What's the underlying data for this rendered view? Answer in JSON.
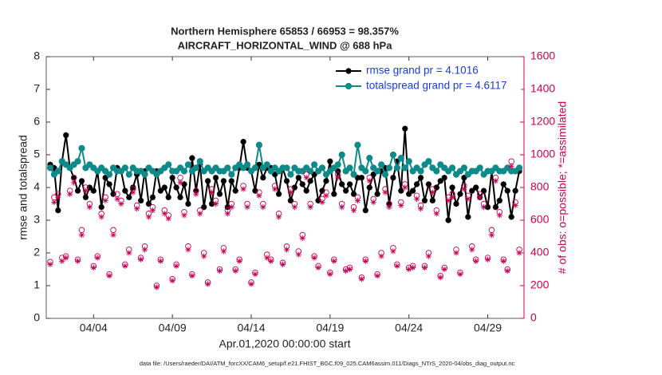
{
  "chart_data": {
    "type": "line",
    "title": "Northern Hemisphere 65853 / 66953 = 98.357%",
    "subtitle": "AIRCRAFT_HORIZONTAL_WIND @ 688 hPa",
    "x_label": "Apr.01,2020 00:00:00 start",
    "y_label": "rmse and totalspread",
    "y2_label": "# of obs: o=possible; *=assimilated",
    "footnote": "data file: /Users/raeder/DAI/ATM_forcXX/CAM6_setup/f.e21.FHIST_BGC.f09_025.CAM6assim.011/Diags_NTrS_2020-04/obs_diag_output.nc",
    "xlim": [
      0,
      30.3
    ],
    "xticks": [
      {
        "value": 3,
        "label": "04/04"
      },
      {
        "value": 8,
        "label": "04/09"
      },
      {
        "value": 13,
        "label": "04/14"
      },
      {
        "value": 18,
        "label": "04/19"
      },
      {
        "value": 23,
        "label": "04/24"
      },
      {
        "value": 28,
        "label": "04/29"
      }
    ],
    "ylim": [
      0,
      8
    ],
    "yticks": [
      0,
      1,
      2,
      3,
      4,
      5,
      6,
      7,
      8
    ],
    "y2lim": [
      0,
      1600
    ],
    "y2ticks": [
      0,
      200,
      400,
      600,
      800,
      1000,
      1200,
      1400,
      1600
    ],
    "y2_color": "#cc0055",
    "legend": "upper right",
    "x": [
      0.25,
      0.5,
      0.75,
      1,
      1.25,
      1.5,
      1.75,
      2,
      2.25,
      2.5,
      2.75,
      3,
      3.25,
      3.5,
      3.75,
      4,
      4.25,
      4.5,
      4.75,
      5,
      5.25,
      5.5,
      5.75,
      6,
      6.25,
      6.5,
      6.75,
      7,
      7.25,
      7.5,
      7.75,
      8,
      8.25,
      8.5,
      8.75,
      9,
      9.25,
      9.5,
      9.75,
      10,
      10.25,
      10.5,
      10.75,
      11,
      11.25,
      11.5,
      11.75,
      12,
      12.25,
      12.5,
      12.75,
      13,
      13.25,
      13.5,
      13.75,
      14,
      14.25,
      14.5,
      14.75,
      15,
      15.25,
      15.5,
      15.75,
      16,
      16.25,
      16.5,
      16.75,
      17,
      17.25,
      17.5,
      17.75,
      18,
      18.25,
      18.5,
      18.75,
      19,
      19.25,
      19.5,
      19.75,
      20,
      20.25,
      20.5,
      20.75,
      21,
      21.25,
      21.5,
      21.75,
      22,
      22.25,
      22.5,
      22.75,
      23,
      23.25,
      23.5,
      23.75,
      24,
      24.25,
      24.5,
      24.75,
      25,
      25.25,
      25.5,
      25.75,
      26,
      26.25,
      26.5,
      26.75,
      27,
      27.25,
      27.5,
      27.75,
      28,
      28.25,
      28.5,
      28.75,
      29,
      29.25,
      29.5,
      29.75,
      30
    ],
    "series": [
      {
        "name": "rmse grand pr = 4.1016",
        "color": "#000000",
        "marker": "*",
        "line": true,
        "values": [
          4.7,
          4.6,
          3.3,
          4.8,
          5.6,
          4.6,
          4.3,
          3.9,
          4.2,
          3.7,
          4.0,
          3.9,
          4.5,
          3.4,
          4.3,
          4.1,
          3.8,
          4.6,
          4.5,
          3.9,
          3.7,
          4.0,
          4.4,
          3.6,
          4.5,
          3.5,
          3.7,
          4.5,
          3.9,
          4.0,
          3.7,
          4.3,
          4.0,
          3.7,
          4.1,
          3.5,
          4.9,
          3.9,
          4.7,
          3.4,
          4.2,
          3.5,
          4.3,
          3.8,
          4.2,
          3.4,
          4.2,
          3.9,
          4.6,
          5.4,
          4.6,
          4.5,
          3.9,
          4.7,
          4.3,
          4.6,
          4.6,
          4.4,
          3.8,
          4.6,
          4.2,
          3.6,
          4.0,
          4.3,
          4.1,
          3.9,
          4.2,
          4.4,
          3.6,
          3.9,
          4.2,
          4.8,
          3.8,
          4.5,
          4.1,
          3.9,
          4.1,
          3.8,
          4.3,
          4.3,
          3.3,
          4.0,
          4.4,
          3.8,
          4.5,
          4.6,
          3.5,
          4.3,
          4.8,
          3.9,
          5.8,
          3.8,
          3.9,
          4.1,
          4.3,
          3.6,
          4.1,
          3.6,
          4.0,
          4.2,
          4.3,
          3.0,
          4.0,
          3.5,
          3.8,
          4.3,
          3.1,
          3.9,
          4.0,
          3.7,
          3.9,
          3.4,
          4.5,
          3.4,
          3.6,
          4.1,
          3.9,
          3.1,
          3.9,
          4.5
        ]
      },
      {
        "name": "totalspread grand pr = 4.6117",
        "color": "#0e8a8a",
        "marker": "o",
        "line": true,
        "values": [
          4.6,
          4.4,
          4.5,
          4.8,
          4.7,
          4.6,
          4.7,
          4.8,
          5.2,
          4.6,
          4.7,
          4.6,
          4.5,
          4.6,
          4.5,
          4.4,
          4.6,
          4.5,
          4.5,
          4.6,
          4.4,
          4.6,
          4.5,
          4.5,
          4.4,
          4.6,
          4.5,
          4.4,
          4.5,
          4.6,
          4.7,
          4.5,
          4.5,
          4.6,
          4.5,
          4.7,
          4.5,
          4.6,
          4.8,
          4.5,
          4.6,
          4.5,
          4.6,
          4.5,
          4.5,
          4.6,
          4.4,
          4.6,
          4.7,
          4.6,
          4.7,
          4.5,
          4.6,
          5.3,
          4.6,
          4.7,
          4.5,
          4.6,
          4.5,
          4.6,
          4.6,
          4.4,
          4.6,
          4.5,
          4.5,
          4.6,
          4.5,
          4.7,
          4.5,
          4.6,
          4.4,
          4.5,
          4.6,
          4.7,
          5.0,
          4.5,
          4.6,
          4.4,
          5.3,
          4.6,
          4.5,
          4.9,
          4.6,
          4.5,
          4.7,
          4.4,
          4.6,
          5.0,
          4.6,
          4.9,
          4.6,
          4.8,
          4.5,
          4.6,
          4.5,
          4.7,
          4.8,
          4.6,
          4.5,
          4.7,
          4.6,
          4.5,
          4.6,
          4.4,
          4.5,
          4.6,
          4.4,
          4.5,
          4.5,
          4.6,
          4.4,
          4.5,
          4.5,
          4.6,
          4.5,
          4.5,
          4.6,
          4.5,
          4.5,
          4.6
        ]
      },
      {
        "color": "#cc0055",
        "marker": "circle-open",
        "line": false,
        "axis": "y2",
        "values": [
          345,
          740,
          760,
          370,
          380,
          780,
          860,
          360,
          540,
          800,
          700,
          320,
          380,
          640,
          740,
          270,
          540,
          760,
          720,
          330,
          420,
          790,
          690,
          370,
          440,
          640,
          680,
          200,
          360,
          660,
          630,
          240,
          330,
          860,
          650,
          440,
          270,
          780,
          660,
          400,
          220,
          790,
          720,
          300,
          430,
          660,
          700,
          300,
          360,
          810,
          700,
          220,
          280,
          770,
          700,
          390,
          360,
          810,
          640,
          340,
          440,
          790,
          700,
          410,
          510,
          880,
          700,
          380,
          320,
          730,
          770,
          280,
          360,
          880,
          700,
          300,
          310,
          680,
          740,
          250,
          360,
          860,
          730,
          270,
          400,
          790,
          700,
          430,
          330,
          710,
          820,
          310,
          320,
          750,
          690,
          320,
          400,
          790,
          660,
          260,
          310,
          740,
          760,
          420,
          280,
          810,
          750,
          440,
          360,
          760,
          700,
          370,
          540,
          860,
          650,
          360,
          300,
          960,
          710,
          420
        ]
      },
      {
        "color": "#cc0055",
        "marker": "asterisk",
        "line": false,
        "axis": "y2",
        "values": [
          330,
          710,
          740,
          350,
          370,
          760,
          830,
          350,
          510,
          780,
          680,
          310,
          370,
          620,
          720,
          260,
          510,
          730,
          700,
          320,
          400,
          770,
          670,
          360,
          420,
          620,
          660,
          190,
          350,
          640,
          610,
          230,
          320,
          830,
          630,
          420,
          260,
          760,
          640,
          380,
          210,
          770,
          700,
          290,
          410,
          640,
          680,
          290,
          350,
          790,
          680,
          210,
          270,
          750,
          680,
          370,
          350,
          790,
          620,
          330,
          420,
          770,
          680,
          390,
          490,
          860,
          680,
          370,
          310,
          710,
          750,
          270,
          350,
          860,
          680,
          290,
          300,
          660,
          720,
          240,
          350,
          840,
          710,
          260,
          380,
          770,
          680,
          410,
          320,
          690,
          800,
          300,
          310,
          730,
          670,
          310,
          380,
          770,
          640,
          250,
          300,
          720,
          740,
          400,
          270,
          790,
          730,
          420,
          350,
          740,
          680,
          360,
          510,
          840,
          630,
          350,
          290,
          930,
          690,
          400
        ]
      }
    ]
  }
}
